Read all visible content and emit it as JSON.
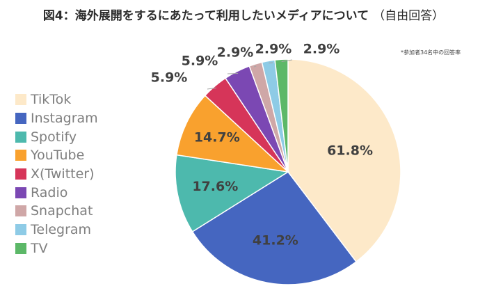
{
  "title": {
    "main": "図4：海外展開をするにあたって利用したいメディアについて",
    "sub": "（自由回答）"
  },
  "note": "*参加者34名中の回答率",
  "colors": {
    "slice_border": "#ffffff",
    "label_text": "#404040",
    "leader_line": "#a6a6a6"
  },
  "chart_data": {
    "type": "pie",
    "categories": [
      "TikTok",
      "Instagram",
      "Spotify",
      "YouTube",
      "X(Twitter)",
      "Radio",
      "Snapchat",
      "Telegram",
      "TV"
    ],
    "values": [
      61.8,
      41.2,
      17.6,
      14.7,
      5.9,
      5.9,
      2.9,
      2.9,
      2.9
    ],
    "value_labels": [
      "61.8%",
      "41.2%",
      "17.6%",
      "14.7%",
      "5.9%",
      "5.9%",
      "2.9%",
      "2.9%",
      "2.9%"
    ],
    "colors": [
      "#fde9c9",
      "#4566c0",
      "#4db9ad",
      "#f9a12e",
      "#d63559",
      "#7b48b3",
      "#cfa7a7",
      "#8ecbe6",
      "#5cb868"
    ],
    "start_angle": "top (12 o'clock)",
    "direction": "clockwise",
    "legend_position": "left"
  }
}
